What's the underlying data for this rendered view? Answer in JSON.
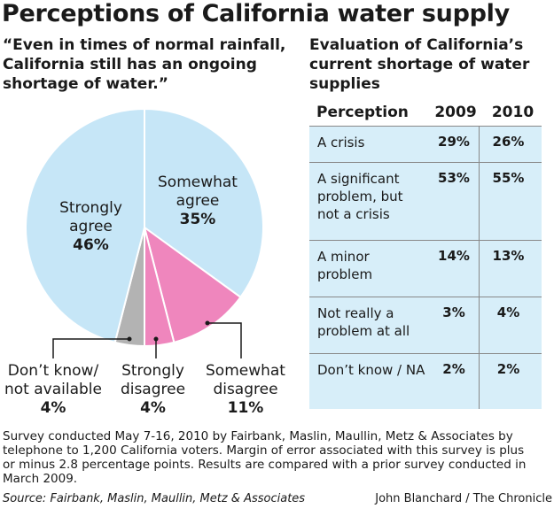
{
  "title": "Perceptions of California water supply",
  "quote": "“Even in times of normal rainfall, California still has an ongoing shortage of water.”",
  "table_title": "Evaluation of California’s current shortage of water supplies",
  "colors": {
    "strongly_agree": "#c6e6f7",
    "somewhat_agree": "#c6e6f7",
    "strongly_disagree": "#ef86bd",
    "somewhat_disagree": "#ef86bd",
    "dont_know": "#b3b3b3",
    "table_bg": "#d7eef9"
  },
  "chart_data": [
    {
      "type": "pie",
      "title": "“Even in times of normal rainfall, California still has an ongoing shortage of water.”",
      "slices": [
        {
          "label": "Somewhat agree",
          "value": 35,
          "display": "35%"
        },
        {
          "label": "Somewhat disagree",
          "value": 11,
          "display": "11%"
        },
        {
          "label": "Strongly disagree",
          "value": 4,
          "display": "4%"
        },
        {
          "label": "Don’t know/ not available",
          "value": 4,
          "display": "4%"
        },
        {
          "label": "Strongly agree",
          "value": 46,
          "display": "46%"
        }
      ]
    },
    {
      "type": "table",
      "title": "Evaluation of California’s current shortage of water supplies",
      "columns": [
        "Perception",
        "2009",
        "2010"
      ],
      "rows": [
        [
          "A crisis",
          "29%",
          "26%"
        ],
        [
          "A significant problem, but not a crisis",
          "53%",
          "55%"
        ],
        [
          "A minor problem",
          "14%",
          "13%"
        ],
        [
          "Not really a problem at all",
          "3%",
          "4%"
        ],
        [
          "Don’t know / NA",
          "2%",
          "2%"
        ]
      ]
    }
  ],
  "pie_labels": {
    "strongly_agree": {
      "name_1": "Strongly",
      "name_2": "agree",
      "pct": "46%"
    },
    "somewhat_agree": {
      "name_1": "Somewhat",
      "name_2": "agree",
      "pct": "35%"
    },
    "dont_know": {
      "name_1": "Don’t know/",
      "name_2": "not available",
      "pct": "4%"
    },
    "strongly_disagree": {
      "name_1": "Strongly",
      "name_2": "disagree",
      "pct": "4%"
    },
    "somewhat_disagree": {
      "name_1": "Somewhat",
      "name_2": "disagree",
      "pct": "11%"
    }
  },
  "table": {
    "header": {
      "perception": "Perception",
      "y2009": "2009",
      "y2010": "2010"
    },
    "rows": [
      {
        "label": "A crisis",
        "y2009": "29%",
        "y2010": "26%"
      },
      {
        "label": "A significant problem, but not a crisis",
        "y2009": "53%",
        "y2010": "55%"
      },
      {
        "label": "A minor problem",
        "y2009": "14%",
        "y2010": "13%"
      },
      {
        "label": "Not really a problem at all",
        "y2009": "3%",
        "y2010": "4%"
      },
      {
        "label": "Don’t know / NA",
        "y2009": "2%",
        "y2010": "2%"
      }
    ]
  },
  "note": "Survey conducted May 7-16, 2010 by Fairbank, Maslin, Maullin, Metz & Associates by telephone to 1,200 California voters. Margin of error associated with this survey is plus or minus 2.8 percentage points. Results are compared with a prior survey conducted in March 2009.",
  "source": "Source: Fairbank, Maslin, Maullin, Metz & Associates",
  "credit": "John Blanchard / The Chronicle"
}
